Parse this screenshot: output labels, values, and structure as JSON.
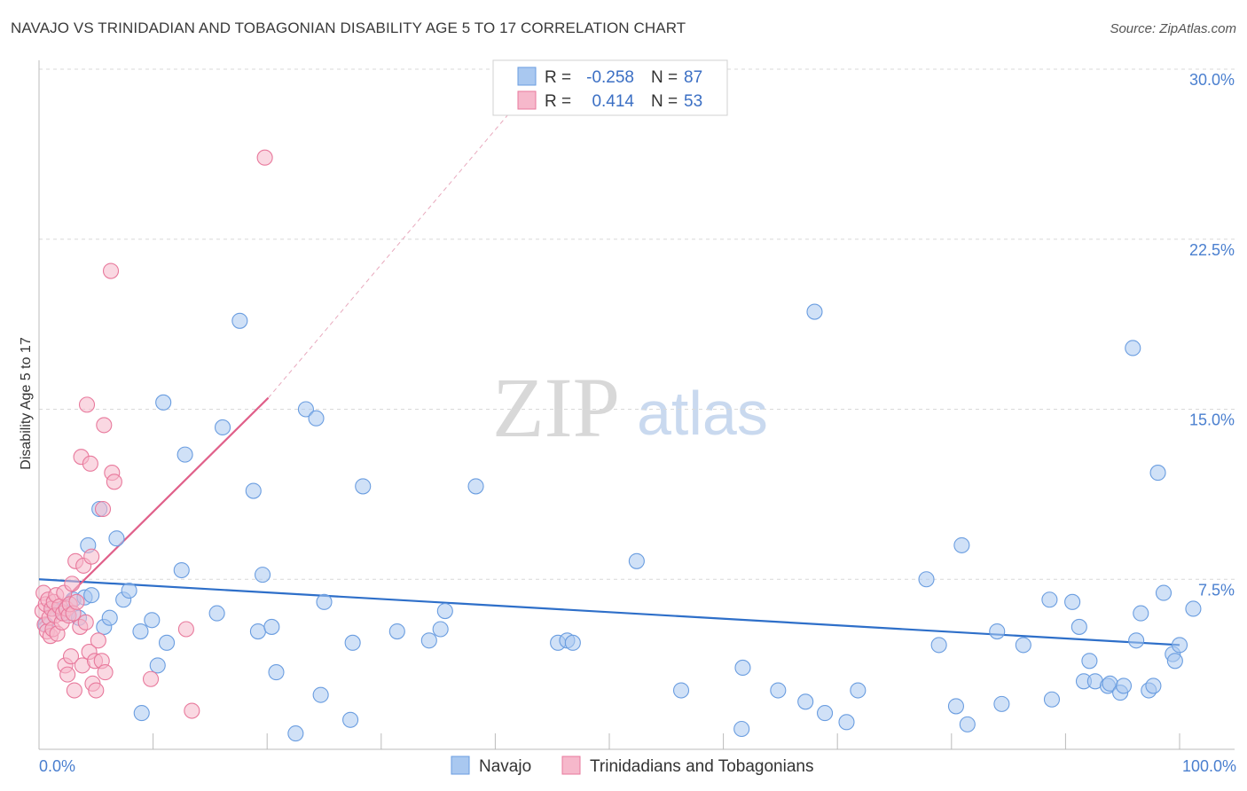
{
  "header": {
    "title": "NAVAJO VS TRINIDADIAN AND TOBAGONIAN DISABILITY AGE 5 TO 17 CORRELATION CHART",
    "source": "Source: ZipAtlas.com"
  },
  "watermark": {
    "zip": "ZIP",
    "atlas": "atlas"
  },
  "colors": {
    "navajo_fill": "#a9c8f0",
    "navajo_stroke": "#6a9de0",
    "navajo_line": "#2e6fc9",
    "tt_fill": "#f6b8cb",
    "tt_stroke": "#e8799c",
    "tt_line": "#e0608a",
    "grid": "#d9d9d9",
    "axis_text": "#4a7fcf"
  },
  "legend": {
    "rows": [
      {
        "r_label": "R =",
        "r_value": "-0.258",
        "n_label": "N =",
        "n_value": "87"
      },
      {
        "r_label": "R =",
        "r_value": "0.414",
        "n_label": "N =",
        "n_value": "53"
      }
    ]
  },
  "chart_data": {
    "type": "scatter",
    "title": "NAVAJO VS TRINIDADIAN AND TOBAGONIAN DISABILITY AGE 5 TO 17 CORRELATION CHART",
    "xlabel": "",
    "ylabel": "Disability Age 5 to 17",
    "xlim": [
      0,
      100
    ],
    "ylim": [
      0,
      30
    ],
    "x_tick_labels": [
      "0.0%",
      "100.0%"
    ],
    "y_ticks": [
      7.5,
      15.0,
      22.5,
      30.0
    ],
    "y_tick_labels": [
      "7.5%",
      "15.0%",
      "22.5%",
      "30.0%"
    ],
    "grid": true,
    "legend_position": "top-center",
    "series": [
      {
        "name": "Navajo",
        "color": "#a9c8f0",
        "trend": {
          "x": [
            0,
            100
          ],
          "y": [
            7.5,
            4.6
          ]
        },
        "points": [
          [
            1.2,
            6.2
          ],
          [
            2.5,
            6.0
          ],
          [
            3.0,
            6.6
          ],
          [
            3.5,
            5.8
          ],
          [
            4.0,
            6.7
          ],
          [
            4.3,
            9.0
          ],
          [
            4.6,
            6.8
          ],
          [
            5.3,
            10.6
          ],
          [
            5.7,
            5.4
          ],
          [
            6.2,
            5.8
          ],
          [
            6.8,
            9.3
          ],
          [
            7.4,
            6.6
          ],
          [
            7.9,
            7.0
          ],
          [
            8.9,
            5.2
          ],
          [
            9.0,
            1.6
          ],
          [
            9.9,
            5.7
          ],
          [
            10.4,
            3.7
          ],
          [
            10.9,
            15.3
          ],
          [
            11.2,
            4.7
          ],
          [
            12.5,
            7.9
          ],
          [
            12.8,
            13.0
          ],
          [
            15.6,
            6.0
          ],
          [
            16.1,
            14.2
          ],
          [
            17.6,
            18.9
          ],
          [
            18.8,
            11.4
          ],
          [
            19.2,
            5.2
          ],
          [
            19.6,
            7.7
          ],
          [
            20.4,
            5.4
          ],
          [
            20.8,
            3.4
          ],
          [
            22.5,
            0.7
          ],
          [
            23.4,
            15.0
          ],
          [
            24.3,
            14.6
          ],
          [
            24.7,
            2.4
          ],
          [
            25.0,
            6.5
          ],
          [
            27.3,
            1.3
          ],
          [
            27.5,
            4.7
          ],
          [
            28.4,
            11.6
          ],
          [
            31.4,
            5.2
          ],
          [
            34.2,
            4.8
          ],
          [
            35.2,
            5.3
          ],
          [
            35.6,
            6.1
          ],
          [
            38.3,
            11.6
          ],
          [
            45.5,
            4.7
          ],
          [
            46.3,
            4.8
          ],
          [
            46.8,
            4.7
          ],
          [
            52.4,
            8.3
          ],
          [
            56.3,
            2.6
          ],
          [
            61.6,
            0.9
          ],
          [
            61.7,
            3.6
          ],
          [
            64.8,
            2.6
          ],
          [
            67.2,
            2.1
          ],
          [
            68.0,
            19.3
          ],
          [
            68.9,
            1.6
          ],
          [
            70.8,
            1.2
          ],
          [
            71.8,
            2.6
          ],
          [
            77.8,
            7.5
          ],
          [
            78.9,
            4.6
          ],
          [
            80.4,
            1.9
          ],
          [
            80.9,
            9.0
          ],
          [
            81.4,
            1.1
          ],
          [
            84.0,
            5.2
          ],
          [
            84.4,
            2.0
          ],
          [
            86.3,
            4.6
          ],
          [
            88.6,
            6.6
          ],
          [
            88.8,
            2.2
          ],
          [
            90.6,
            6.5
          ],
          [
            91.2,
            5.4
          ],
          [
            91.6,
            3.0
          ],
          [
            92.1,
            3.9
          ],
          [
            92.6,
            3.0
          ],
          [
            93.7,
            2.8
          ],
          [
            93.9,
            2.9
          ],
          [
            94.8,
            2.5
          ],
          [
            95.1,
            2.8
          ],
          [
            95.9,
            17.7
          ],
          [
            96.2,
            4.8
          ],
          [
            96.6,
            6.0
          ],
          [
            97.3,
            2.6
          ],
          [
            97.7,
            2.8
          ],
          [
            98.1,
            12.2
          ],
          [
            98.6,
            6.9
          ],
          [
            99.4,
            4.2
          ],
          [
            99.6,
            3.9
          ],
          [
            100.0,
            4.6
          ],
          [
            101.2,
            6.2
          ],
          [
            0.6,
            5.5
          ],
          [
            1.9,
            6.1
          ]
        ]
      },
      {
        "name": "Trinidadians and Tobagonians",
        "color": "#f6b8cb",
        "trend": {
          "x": [
            0,
            20.1
          ],
          "y": [
            5.5,
            15.5
          ]
        },
        "trend_extension": {
          "x": [
            20.1,
            45.0
          ],
          "y": [
            15.5,
            30.3
          ]
        },
        "points": [
          [
            0.3,
            6.1
          ],
          [
            0.4,
            6.9
          ],
          [
            0.5,
            5.5
          ],
          [
            0.6,
            6.4
          ],
          [
            0.7,
            5.2
          ],
          [
            0.8,
            6.6
          ],
          [
            0.9,
            5.8
          ],
          [
            1.0,
            5.0
          ],
          [
            1.1,
            6.2
          ],
          [
            1.2,
            5.3
          ],
          [
            1.3,
            6.5
          ],
          [
            1.4,
            5.9
          ],
          [
            1.5,
            6.8
          ],
          [
            1.6,
            5.1
          ],
          [
            1.8,
            6.3
          ],
          [
            2.0,
            5.6
          ],
          [
            2.1,
            6.0
          ],
          [
            2.2,
            6.9
          ],
          [
            2.3,
            3.7
          ],
          [
            2.4,
            6.2
          ],
          [
            2.5,
            3.3
          ],
          [
            2.6,
            5.9
          ],
          [
            2.7,
            6.4
          ],
          [
            2.8,
            4.1
          ],
          [
            2.9,
            7.3
          ],
          [
            3.0,
            6.0
          ],
          [
            3.1,
            2.6
          ],
          [
            3.2,
            8.3
          ],
          [
            3.3,
            6.5
          ],
          [
            3.6,
            5.4
          ],
          [
            3.7,
            12.9
          ],
          [
            3.8,
            3.7
          ],
          [
            3.9,
            8.1
          ],
          [
            4.1,
            5.6
          ],
          [
            4.2,
            15.2
          ],
          [
            4.4,
            4.3
          ],
          [
            4.5,
            12.6
          ],
          [
            4.6,
            8.5
          ],
          [
            4.7,
            2.9
          ],
          [
            4.9,
            3.9
          ],
          [
            5.0,
            2.6
          ],
          [
            5.2,
            4.8
          ],
          [
            5.5,
            3.9
          ],
          [
            5.6,
            10.6
          ],
          [
            5.7,
            14.3
          ],
          [
            5.8,
            3.4
          ],
          [
            6.3,
            21.1
          ],
          [
            6.4,
            12.2
          ],
          [
            6.6,
            11.8
          ],
          [
            9.8,
            3.1
          ],
          [
            12.9,
            5.3
          ],
          [
            13.4,
            1.7
          ],
          [
            19.8,
            26.1
          ]
        ]
      }
    ]
  },
  "bottom_legend": {
    "items": [
      {
        "label": "Navajo"
      },
      {
        "label": "Trinidadians and Tobagonians"
      }
    ]
  }
}
